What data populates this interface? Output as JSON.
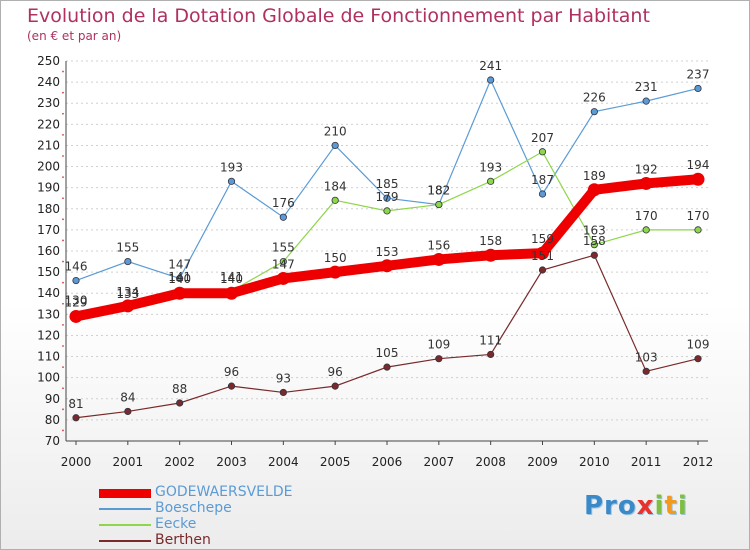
{
  "header": {
    "title": "Evolution de la Dotation Globale de Fonctionnement par Habitant",
    "subtitle": "(en € et par an)"
  },
  "logo": {
    "text": "Proxiti"
  },
  "chart_data": {
    "type": "line",
    "title": "Evolution de la Dotation Globale de Fonctionnement par Habitant",
    "subtitle": "(en € et par an)",
    "x": [
      2000,
      2001,
      2002,
      2003,
      2004,
      2005,
      2006,
      2007,
      2008,
      2009,
      2010,
      2011,
      2012
    ],
    "ylim": [
      70,
      250
    ],
    "yticks": [
      70,
      80,
      90,
      100,
      110,
      120,
      130,
      140,
      150,
      160,
      170,
      180,
      190,
      200,
      210,
      220,
      230,
      240,
      250
    ],
    "grid": "horizontal dashed",
    "legend_position": "bottom-left",
    "series": [
      {
        "name": "Boeschepe",
        "color": "#5b9bd5",
        "values": [
          146,
          155,
          147,
          193,
          176,
          210,
          185,
          182,
          241,
          187,
          226,
          231,
          237
        ]
      },
      {
        "name": "Eecke",
        "color": "#8ed64a",
        "values": [
          130,
          133,
          141,
          141,
          155,
          184,
          179,
          182,
          193,
          207,
          163,
          170,
          170
        ]
      },
      {
        "name": "Berthen",
        "color": "#7a2a2a",
        "values": [
          81,
          84,
          88,
          96,
          93,
          96,
          105,
          109,
          111,
          151,
          158,
          103,
          109
        ]
      },
      {
        "name": "GODEWAERSVELDE",
        "color": "#ee0000",
        "emphasis": true,
        "values": [
          129,
          134,
          140,
          140,
          147,
          150,
          153,
          156,
          158,
          159,
          189,
          192,
          194
        ]
      }
    ]
  }
}
